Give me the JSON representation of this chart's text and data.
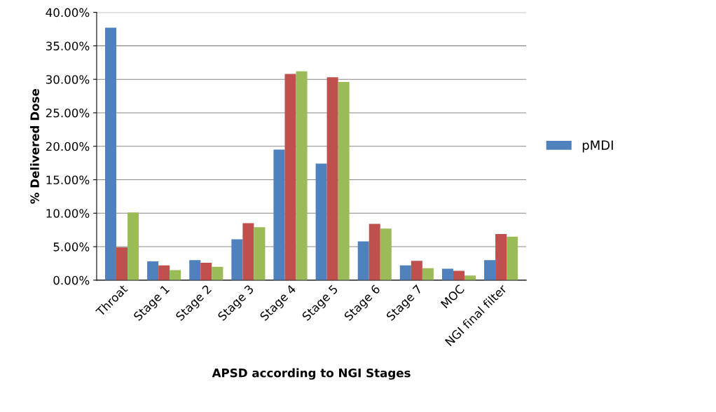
{
  "chart_data": {
    "type": "bar",
    "xlabel": "APSD according to NGI Stages",
    "ylabel": "% Delivered Dose",
    "categories": [
      "Throat",
      "Stage 1",
      "Stage 2",
      "Stage 3",
      "Stage 4",
      "Stage 5",
      "Stage 6",
      "Stage 7",
      "MOC",
      "NGI final filter"
    ],
    "series": [
      {
        "name": "pMDI",
        "color": "#4f81bd",
        "values": [
          37.7,
          2.8,
          3.0,
          6.1,
          19.5,
          17.4,
          5.8,
          2.2,
          1.7,
          3.0
        ]
      },
      {
        "color": "#c0504d",
        "values": [
          4.9,
          2.2,
          2.6,
          8.5,
          30.8,
          30.3,
          8.4,
          2.9,
          1.4,
          6.9
        ]
      },
      {
        "color": "#9bbb59",
        "values": [
          10.1,
          1.5,
          2.0,
          7.9,
          31.2,
          29.6,
          7.7,
          1.8,
          0.7,
          6.5
        ]
      }
    ],
    "ylim": [
      0,
      40
    ],
    "yticks": [
      {
        "value": 0,
        "label": "0.00%"
      },
      {
        "value": 5,
        "label": "5.00%"
      },
      {
        "value": 10,
        "label": "10.00%"
      },
      {
        "value": 15,
        "label": "15.00%"
      },
      {
        "value": 20,
        "label": "20.00%"
      },
      {
        "value": 25,
        "label": "25.00%"
      },
      {
        "value": 30,
        "label": "30.00%"
      },
      {
        "value": 35,
        "label": "35.00%"
      },
      {
        "value": 40,
        "label": "40.00%"
      }
    ],
    "grid": "y",
    "legend": "right"
  }
}
